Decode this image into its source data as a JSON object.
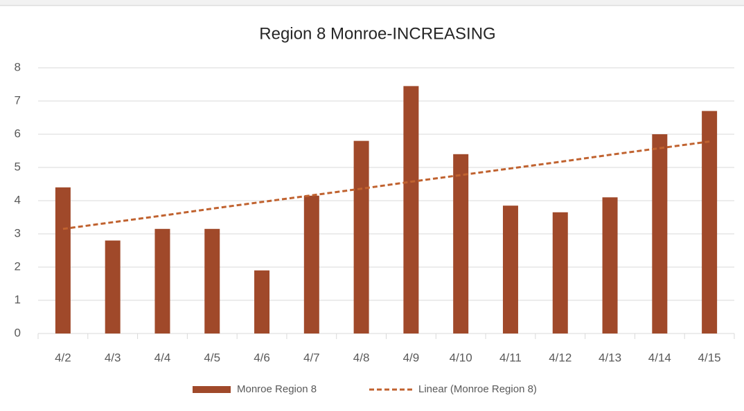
{
  "chart_data": {
    "type": "bar",
    "title": "Region 8 Monroe-INCREASING",
    "categories": [
      "4/2",
      "4/3",
      "4/4",
      "4/5",
      "4/6",
      "4/7",
      "4/8",
      "4/9",
      "4/10",
      "4/11",
      "4/12",
      "4/13",
      "4/14",
      "4/15"
    ],
    "series": [
      {
        "name": "Monroe Region 8",
        "type": "bar",
        "color": "#a0492a",
        "values": [
          4.4,
          2.8,
          3.15,
          3.15,
          1.9,
          4.15,
          5.8,
          7.45,
          5.4,
          3.85,
          3.65,
          4.1,
          6.0,
          6.7
        ]
      },
      {
        "name": "Linear (Monroe Region 8)",
        "type": "line",
        "dashed": true,
        "color": "#c0622f",
        "values": [
          3.15,
          3.35,
          3.55,
          3.76,
          3.96,
          4.16,
          4.36,
          4.57,
          4.77,
          4.97,
          5.17,
          5.38,
          5.58,
          5.78
        ]
      }
    ],
    "ylim": [
      0,
      8
    ],
    "yticks": [
      0,
      1,
      2,
      3,
      4,
      5,
      6,
      7,
      8
    ],
    "grid": true,
    "legend": "bottom"
  }
}
